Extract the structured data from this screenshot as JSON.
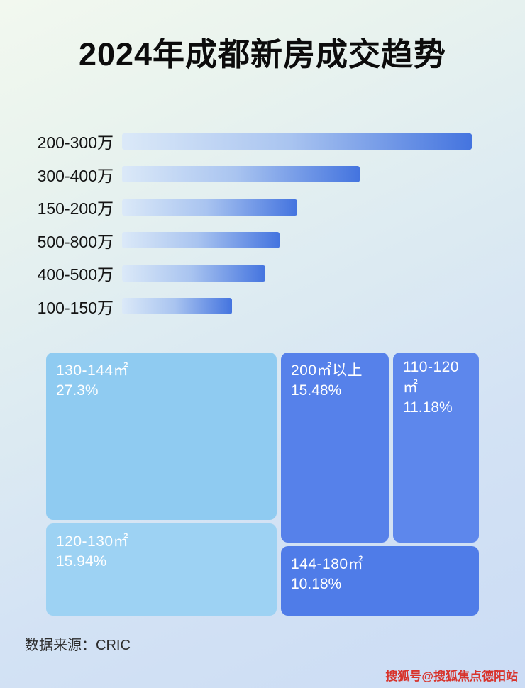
{
  "page": {
    "title": "2024年成都新房成交趋势",
    "source_label": "数据来源：CRIC",
    "watermark": "搜狐号@搜狐焦点德阳站"
  },
  "colors": {
    "bar_gradient_start": "#dbe9f8",
    "bar_gradient_end": "#4474df",
    "treemap_light_blue": "#8fcbf1",
    "treemap_lighter_blue": "#9dd2f3",
    "treemap_medium_blue": "#5681ea",
    "block_text": "#ffffff",
    "watermark_red": "#d8332b"
  },
  "chart_data": [
    {
      "type": "bar",
      "orientation": "horizontal",
      "title": "2024年成都新房成交趋势",
      "categories": [
        "200-300万",
        "300-400万",
        "150-200万",
        "500-800万",
        "400-500万",
        "100-150万"
      ],
      "values": [
        100,
        68,
        50,
        45,
        41,
        31.5
      ],
      "value_note": "bar lengths relative to longest bar (%); no numeric data labels shown in image",
      "xlabel": "",
      "ylabel": "",
      "grid": false,
      "legend": "none"
    },
    {
      "type": "treemap",
      "items": [
        {
          "label": "130-144㎡",
          "pct": 27.3,
          "display": "27.3%",
          "color": "#8fcbf1"
        },
        {
          "label": "120-130㎡",
          "pct": 15.94,
          "display": "15.94%",
          "color": "#9dd2f3"
        },
        {
          "label": "200㎡以上",
          "pct": 15.48,
          "display": "15.48%",
          "color": "#5681ea"
        },
        {
          "label": "110-120㎡",
          "pct": 11.18,
          "display": "11.18%",
          "color": "#5d87ec"
        },
        {
          "label": "144-180㎡",
          "pct": 10.18,
          "display": "10.18%",
          "color": "#4f7ce8"
        }
      ]
    }
  ]
}
